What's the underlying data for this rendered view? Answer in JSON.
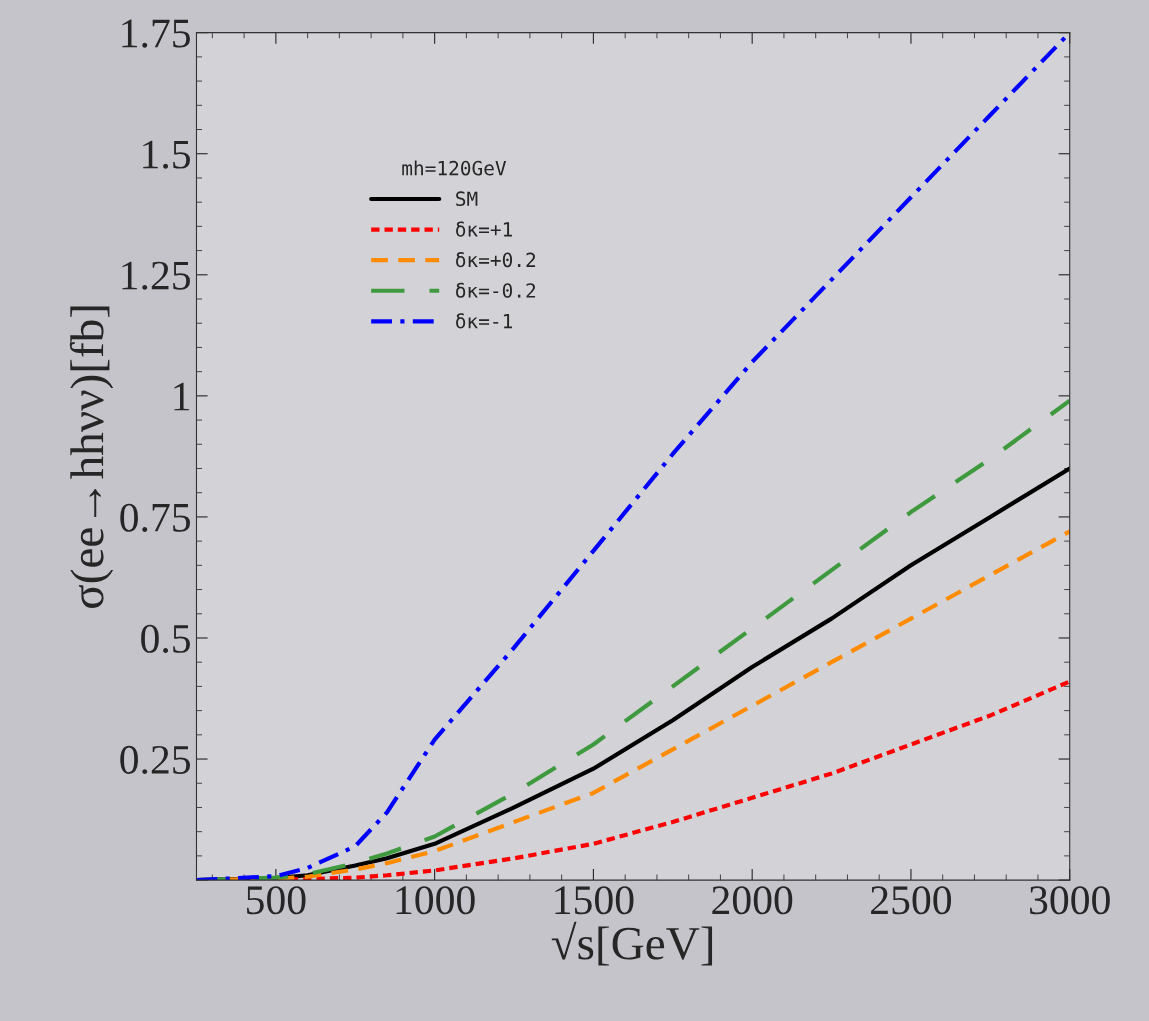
{
  "chart_data": {
    "type": "line",
    "xlabel": "√s[GeV]",
    "ylabel": "σ(ee→hhνν)[fb]",
    "legend_title": "mh=120GeV",
    "legend": "top left",
    "grid": false,
    "x": [
      250,
      500,
      600,
      750,
      850,
      1000,
      1250,
      1500,
      1750,
      2000,
      2250,
      2500,
      2750,
      3000
    ],
    "xlim": [
      250,
      3000
    ],
    "xticks": [
      500,
      1000,
      1500,
      2000,
      2500,
      3000
    ],
    "ylim": [
      0,
      1.75
    ],
    "yticks": [
      {
        "value": 0,
        "label": null
      },
      0.25,
      0.5,
      0.75,
      1,
      1.25,
      1.5,
      1.75
    ],
    "series": [
      {
        "name": "SM",
        "color": "#000000",
        "line_style": "solid",
        "values": [
          0,
          0.004,
          0.01,
          0.03,
          0.045,
          0.075,
          0.15,
          0.23,
          0.33,
          0.44,
          0.54,
          0.65,
          0.75,
          0.85
        ]
      },
      {
        "name": "δκ=+1",
        "color": "#ff0000",
        "line_style": "dotted",
        "values": [
          0,
          0.001,
          0.002,
          0.005,
          0.01,
          0.02,
          0.045,
          0.075,
          0.12,
          0.17,
          0.22,
          0.28,
          0.34,
          0.41
        ]
      },
      {
        "name": "δκ=+0.2",
        "color": "#ff8c00",
        "line_style": "dashed",
        "values": [
          0,
          0.003,
          0.007,
          0.022,
          0.035,
          0.06,
          0.12,
          0.18,
          0.27,
          0.36,
          0.45,
          0.54,
          0.63,
          0.72
        ]
      },
      {
        "name": "δκ=-0.2",
        "color": "#3f9a3f",
        "line_style": "longdashed",
        "values": [
          0,
          0.005,
          0.012,
          0.035,
          0.055,
          0.09,
          0.18,
          0.28,
          0.4,
          0.52,
          0.64,
          0.76,
          0.87,
          0.99
        ]
      },
      {
        "name": "δκ=-1",
        "color": "#0000ff",
        "line_style": "dashdot",
        "values": [
          0,
          0.008,
          0.025,
          0.07,
          0.14,
          0.29,
          0.48,
          0.68,
          0.88,
          1.07,
          1.24,
          1.41,
          1.58,
          1.75
        ]
      }
    ]
  }
}
